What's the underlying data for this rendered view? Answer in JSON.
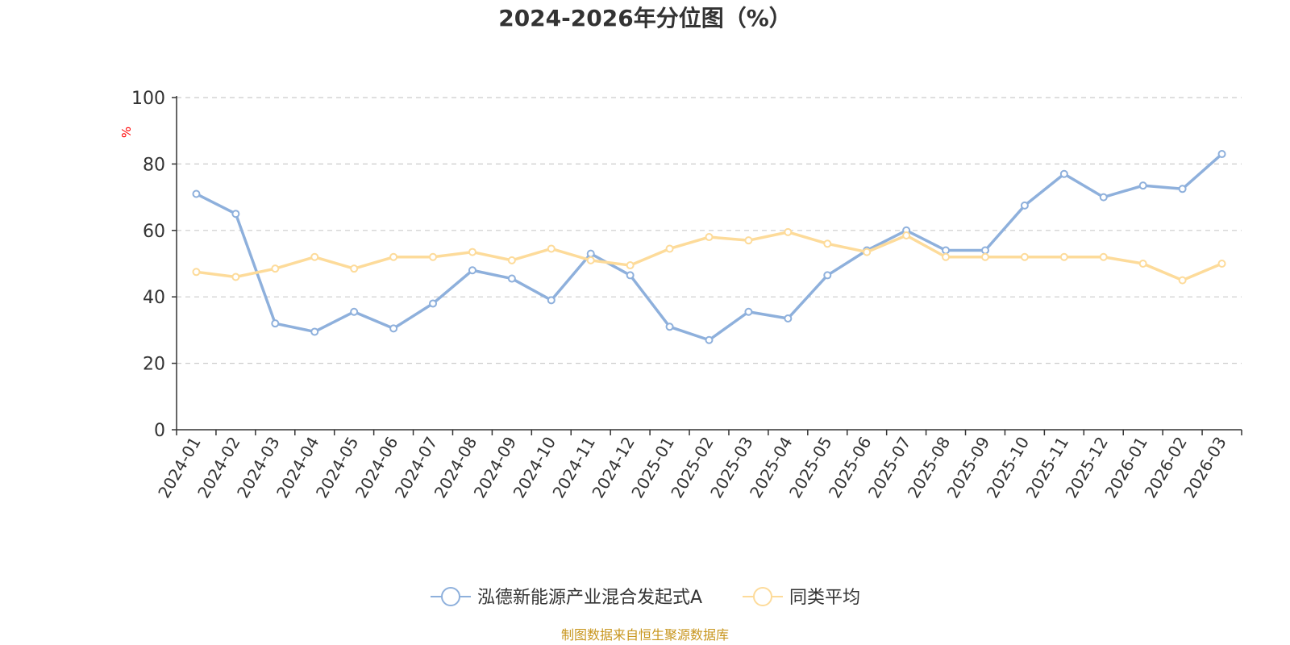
{
  "title": "2024-2026年分位图（%）",
  "source": "制图数据来自恒生聚源数据库",
  "colors": {
    "series1": "#8eb0dc",
    "series2": "#fddb9a",
    "unit": "#ff0000",
    "source": "#c8961e"
  },
  "chart_data": {
    "type": "line",
    "title": "2024-2026年分位图（%）",
    "ylabel": "%",
    "xlabel": "",
    "ylim": [
      0,
      100
    ],
    "yticks": [
      0,
      20,
      40,
      60,
      80,
      100
    ],
    "grid": true,
    "legend_position": "bottom",
    "categories": [
      "2024-01",
      "2024-02",
      "2024-03",
      "2024-04",
      "2024-05",
      "2024-06",
      "2024-07",
      "2024-08",
      "2024-09",
      "2024-10",
      "2024-11",
      "2024-12",
      "2025-01",
      "2025-02",
      "2025-03",
      "2025-04",
      "2025-05",
      "2025-06",
      "2025-07",
      "2025-08",
      "2025-09",
      "2025-10",
      "2025-11",
      "2025-12",
      "2026-01",
      "2026-02",
      "2026-03"
    ],
    "series": [
      {
        "name": "泓德新能源产业混合发起式A",
        "values": [
          71,
          65,
          32,
          29.5,
          35.5,
          30.5,
          38,
          48,
          45.5,
          39,
          53,
          46.5,
          31,
          27,
          35.5,
          33.5,
          46.5,
          54,
          60,
          54,
          54,
          67.5,
          77,
          70,
          73.5,
          72.5,
          83
        ]
      },
      {
        "name": "同类平均",
        "values": [
          47.5,
          46,
          48.5,
          52,
          48.5,
          52,
          52,
          53.5,
          51,
          54.5,
          51,
          49.5,
          54.5,
          58,
          57,
          59.5,
          56,
          53.5,
          58.5,
          52,
          52,
          52,
          52,
          52,
          50,
          45,
          50
        ]
      }
    ]
  }
}
